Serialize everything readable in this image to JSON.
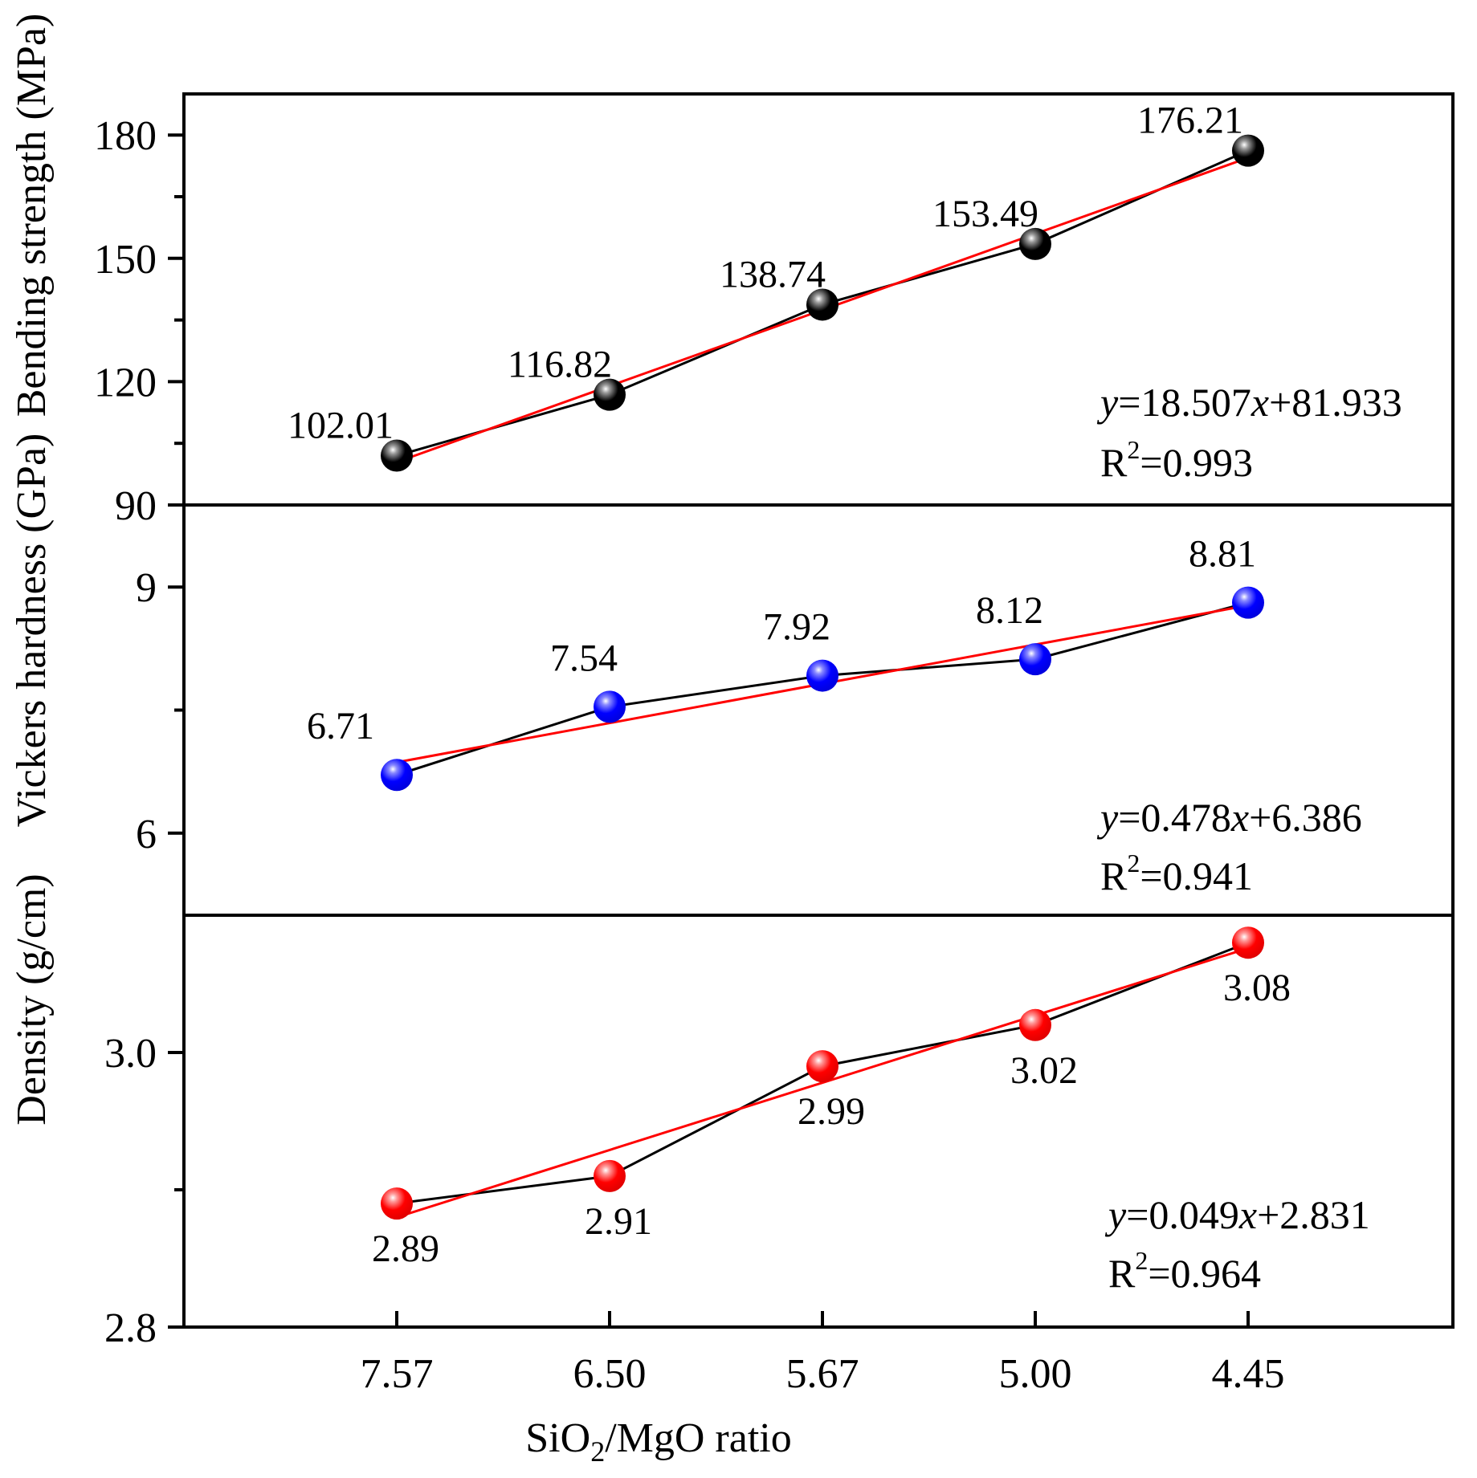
{
  "figure": {
    "xlabel_prefix": "SiO",
    "xlabel_sub": "2",
    "xlabel_suffix": "/MgO ratio"
  },
  "chart_data": [
    {
      "type": "line",
      "id": "bending",
      "ylabel": "Bending strength (MPa)",
      "categories": [
        "7.57",
        "6.50",
        "5.67",
        "5.00",
        "4.45"
      ],
      "x": [
        1,
        2,
        3,
        4,
        5
      ],
      "values": [
        102.01,
        116.82,
        138.74,
        153.49,
        176.21
      ],
      "data_labels": [
        "102.01",
        "116.82",
        "138.74",
        "153.49",
        "176.21"
      ],
      "ylim": [
        90,
        190
      ],
      "yticks": [
        90,
        120,
        150,
        180
      ],
      "yticks_minor": [
        105,
        135,
        165
      ],
      "ytick_labels": [
        "90",
        "120",
        "150",
        "180"
      ],
      "marker_color": "#000000",
      "line_color": "#000000",
      "fit": {
        "slope": 18.507,
        "intercept": 81.933,
        "color": "#ff0000",
        "eq_y": "y",
        "eq_mid": "=18.507",
        "eq_x": "x",
        "eq_tail": "+81.933",
        "r2_base": "R",
        "r2_sup": "2",
        "r2_value": "=0.993"
      }
    },
    {
      "type": "line",
      "id": "vickers",
      "ylabel": "Vickers hardness (GPa)",
      "categories": [
        "7.57",
        "6.50",
        "5.67",
        "5.00",
        "4.45"
      ],
      "x": [
        1,
        2,
        3,
        4,
        5
      ],
      "values": [
        6.71,
        7.54,
        7.92,
        8.12,
        8.81
      ],
      "data_labels": [
        "6.71",
        "7.54",
        "7.92",
        "8.12",
        "8.81"
      ],
      "ylim": [
        5.0,
        10.0
      ],
      "yticks": [
        6,
        9
      ],
      "yticks_minor": [
        7.5
      ],
      "ytick_labels": [
        "6",
        "9"
      ],
      "marker_color": "#0000ff",
      "line_color": "#000000",
      "fit": {
        "slope": 0.478,
        "intercept": 6.386,
        "color": "#ff0000",
        "eq_y": "y",
        "eq_mid": "=0.478",
        "eq_x": "x",
        "eq_tail": "+6.386",
        "r2_base": "R",
        "r2_sup": "2",
        "r2_value": "=0.941"
      }
    },
    {
      "type": "line",
      "id": "density",
      "ylabel": "Density (g/cm)",
      "categories": [
        "7.57",
        "6.50",
        "5.67",
        "5.00",
        "4.45"
      ],
      "x": [
        1,
        2,
        3,
        4,
        5
      ],
      "values": [
        2.89,
        2.91,
        2.99,
        3.02,
        3.08
      ],
      "data_labels": [
        "2.89",
        "2.91",
        "2.99",
        "3.02",
        "3.08"
      ],
      "ylim": [
        2.8,
        3.1
      ],
      "yticks": [
        2.8,
        3.0
      ],
      "yticks_minor": [
        2.9
      ],
      "ytick_labels": [
        "2.8",
        "3.0"
      ],
      "marker_color": "#ff0000",
      "line_color": "#000000",
      "fit": {
        "slope": 0.049,
        "intercept": 2.831,
        "color": "#ff0000",
        "eq_y": "y",
        "eq_mid": "=0.049",
        "eq_x": "x",
        "eq_tail": "+2.831",
        "r2_base": "R",
        "r2_sup": "2",
        "r2_value": "=0.964"
      }
    }
  ]
}
